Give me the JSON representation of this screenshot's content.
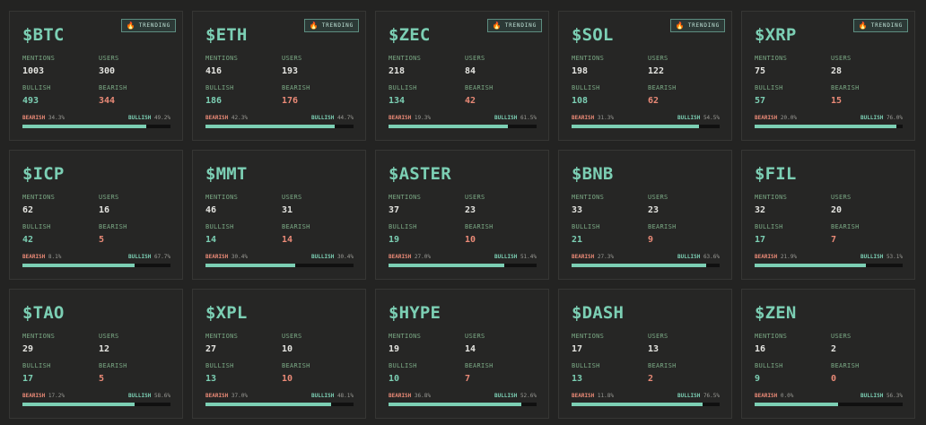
{
  "badge_label": "TRENDING",
  "labels": {
    "mentions": "MENTIONS",
    "users": "USERS",
    "bullish": "BULLISH",
    "bearish": "BEARISH"
  },
  "colors": {
    "background": "#232322",
    "card": "#262625",
    "accent_green": "#7ccfb4",
    "accent_red": "#ea8a77",
    "badge_border": "#5d8d80"
  },
  "cards": [
    {
      "ticker": "$BTC",
      "trending": true,
      "mentions": "1003",
      "users": "300",
      "bullish": "493",
      "bearish": "344",
      "bearish_pct": "34.3%",
      "bullish_pct": "49.2%",
      "bear": 0.343,
      "bull": 0.492
    },
    {
      "ticker": "$ETH",
      "trending": true,
      "mentions": "416",
      "users": "193",
      "bullish": "186",
      "bearish": "176",
      "bearish_pct": "42.3%",
      "bullish_pct": "44.7%",
      "bear": 0.423,
      "bull": 0.447
    },
    {
      "ticker": "$ZEC",
      "trending": true,
      "mentions": "218",
      "users": "84",
      "bullish": "134",
      "bearish": "42",
      "bearish_pct": "19.3%",
      "bullish_pct": "61.5%",
      "bear": 0.193,
      "bull": 0.615
    },
    {
      "ticker": "$SOL",
      "trending": true,
      "mentions": "198",
      "users": "122",
      "bullish": "108",
      "bearish": "62",
      "bearish_pct": "31.3%",
      "bullish_pct": "54.5%",
      "bear": 0.313,
      "bull": 0.545
    },
    {
      "ticker": "$XRP",
      "trending": true,
      "mentions": "75",
      "users": "28",
      "bullish": "57",
      "bearish": "15",
      "bearish_pct": "20.0%",
      "bullish_pct": "76.0%",
      "bear": 0.2,
      "bull": 0.76
    },
    {
      "ticker": "$ICP",
      "trending": false,
      "mentions": "62",
      "users": "16",
      "bullish": "42",
      "bearish": "5",
      "bearish_pct": "8.1%",
      "bullish_pct": "67.7%",
      "bear": 0.081,
      "bull": 0.677
    },
    {
      "ticker": "$MMT",
      "trending": false,
      "mentions": "46",
      "users": "31",
      "bullish": "14",
      "bearish": "14",
      "bearish_pct": "30.4%",
      "bullish_pct": "30.4%",
      "bear": 0.304,
      "bull": 0.304
    },
    {
      "ticker": "$ASTER",
      "trending": false,
      "mentions": "37",
      "users": "23",
      "bullish": "19",
      "bearish": "10",
      "bearish_pct": "27.0%",
      "bullish_pct": "51.4%",
      "bear": 0.27,
      "bull": 0.514
    },
    {
      "ticker": "$BNB",
      "trending": false,
      "mentions": "33",
      "users": "23",
      "bullish": "21",
      "bearish": "9",
      "bearish_pct": "27.3%",
      "bullish_pct": "63.6%",
      "bear": 0.273,
      "bull": 0.636
    },
    {
      "ticker": "$FIL",
      "trending": false,
      "mentions": "32",
      "users": "20",
      "bullish": "17",
      "bearish": "7",
      "bearish_pct": "21.9%",
      "bullish_pct": "53.1%",
      "bear": 0.219,
      "bull": 0.531
    },
    {
      "ticker": "$TAO",
      "trending": false,
      "mentions": "29",
      "users": "12",
      "bullish": "17",
      "bearish": "5",
      "bearish_pct": "17.2%",
      "bullish_pct": "58.6%",
      "bear": 0.172,
      "bull": 0.586
    },
    {
      "ticker": "$XPL",
      "trending": false,
      "mentions": "27",
      "users": "10",
      "bullish": "13",
      "bearish": "10",
      "bearish_pct": "37.0%",
      "bullish_pct": "48.1%",
      "bear": 0.37,
      "bull": 0.481
    },
    {
      "ticker": "$HYPE",
      "trending": false,
      "mentions": "19",
      "users": "14",
      "bullish": "10",
      "bearish": "7",
      "bearish_pct": "36.8%",
      "bullish_pct": "52.6%",
      "bear": 0.368,
      "bull": 0.526
    },
    {
      "ticker": "$DASH",
      "trending": false,
      "mentions": "17",
      "users": "13",
      "bullish": "13",
      "bearish": "2",
      "bearish_pct": "11.8%",
      "bullish_pct": "76.5%",
      "bear": 0.118,
      "bull": 0.765
    },
    {
      "ticker": "$ZEN",
      "trending": false,
      "mentions": "16",
      "users": "2",
      "bullish": "9",
      "bearish": "0",
      "bearish_pct": "0.0%",
      "bullish_pct": "56.3%",
      "bear": 0.0,
      "bull": 0.563
    }
  ]
}
